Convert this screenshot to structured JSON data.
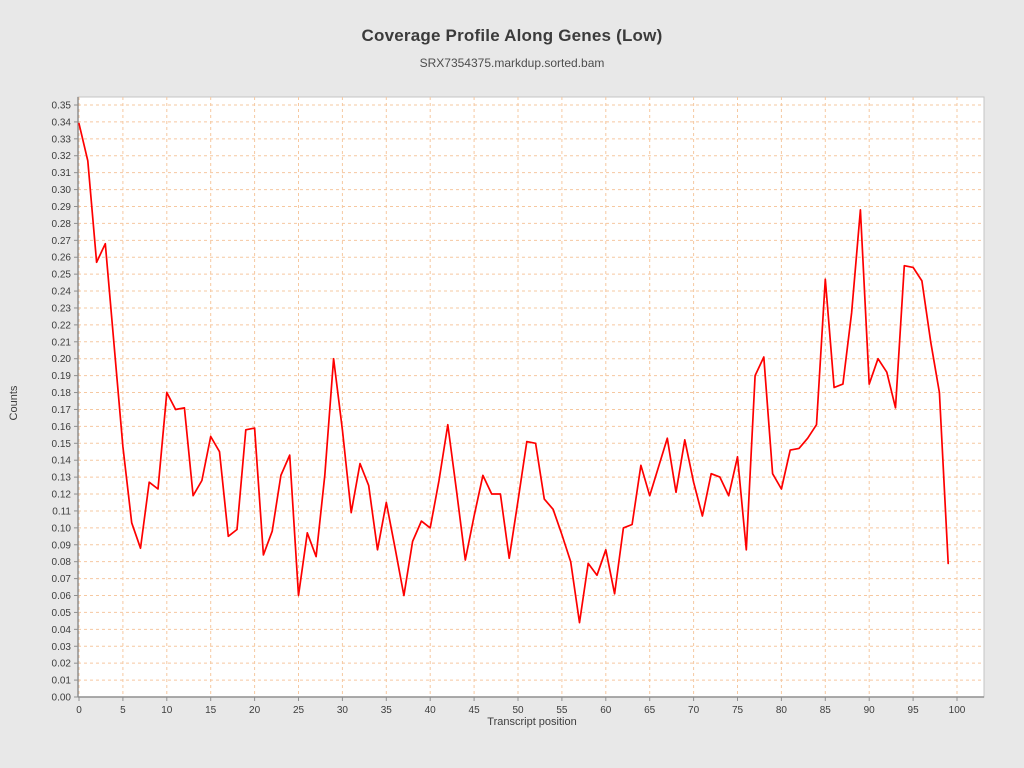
{
  "header": {
    "title": "Coverage Profile Along Genes (Low)",
    "subtitle": "SRX7354375.markdup.sorted.bam"
  },
  "chart_data": {
    "type": "line",
    "title": "Coverage Profile Along Genes (Low)",
    "subtitle": "SRX7354375.markdup.sorted.bam",
    "xlabel": "Transcript position",
    "ylabel": "Counts",
    "xlim": [
      0,
      103
    ],
    "ylim": [
      0.0,
      0.35
    ],
    "x_ticks": [
      0,
      5,
      10,
      15,
      20,
      25,
      30,
      35,
      40,
      45,
      50,
      55,
      60,
      65,
      70,
      75,
      80,
      85,
      90,
      95,
      100
    ],
    "y_tick_min": 0.0,
    "y_tick_max": 0.35,
    "y_tick_step": 0.01,
    "grid": true,
    "legend_position": "none",
    "x": [
      0,
      1,
      2,
      3,
      4,
      5,
      6,
      7,
      8,
      9,
      10,
      11,
      12,
      13,
      14,
      15,
      16,
      17,
      18,
      19,
      20,
      21,
      22,
      23,
      24,
      25,
      26,
      27,
      28,
      29,
      30,
      31,
      32,
      33,
      34,
      35,
      36,
      37,
      38,
      39,
      40,
      41,
      42,
      43,
      44,
      45,
      46,
      47,
      48,
      49,
      50,
      51,
      52,
      53,
      54,
      55,
      56,
      57,
      58,
      59,
      60,
      61,
      62,
      63,
      64,
      65,
      66,
      67,
      68,
      69,
      70,
      71,
      72,
      73,
      74,
      75,
      76,
      77,
      78,
      79,
      80,
      81,
      82,
      83,
      84,
      85,
      86,
      87,
      88,
      89,
      90,
      91,
      92,
      93,
      94,
      95,
      96,
      97,
      98,
      99
    ],
    "values": [
      0.339,
      0.317,
      0.257,
      0.268,
      0.208,
      0.148,
      0.103,
      0.088,
      0.127,
      0.123,
      0.18,
      0.17,
      0.171,
      0.119,
      0.128,
      0.154,
      0.145,
      0.095,
      0.099,
      0.158,
      0.159,
      0.084,
      0.098,
      0.131,
      0.143,
      0.06,
      0.097,
      0.083,
      0.131,
      0.2,
      0.158,
      0.109,
      0.138,
      0.125,
      0.087,
      0.115,
      0.088,
      0.06,
      0.092,
      0.104,
      0.1,
      0.128,
      0.161,
      0.122,
      0.081,
      0.107,
      0.131,
      0.12,
      0.12,
      0.082,
      0.116,
      0.151,
      0.15,
      0.117,
      0.111,
      0.096,
      0.08,
      0.044,
      0.079,
      0.072,
      0.087,
      0.061,
      0.1,
      0.102,
      0.137,
      0.119,
      0.136,
      0.153,
      0.121,
      0.152,
      0.127,
      0.107,
      0.132,
      0.13,
      0.119,
      0.142,
      0.087,
      0.19,
      0.201,
      0.132,
      0.123,
      0.146,
      0.147,
      0.153,
      0.161,
      0.247,
      0.183,
      0.185,
      0.227,
      0.288,
      0.185,
      0.2,
      0.192,
      0.171,
      0.255,
      0.254,
      0.246,
      0.21,
      0.18,
      0.079
    ],
    "line_color": "#fe0000",
    "grid_color": "#f6c8a0",
    "plot_bg_color": "#ffffff",
    "panel_bg_color": "#e8e8e8",
    "frame_color": "#c4c4c4",
    "axis_color": "#8f8f8f",
    "tick_label_color": "#3d3d3d"
  }
}
